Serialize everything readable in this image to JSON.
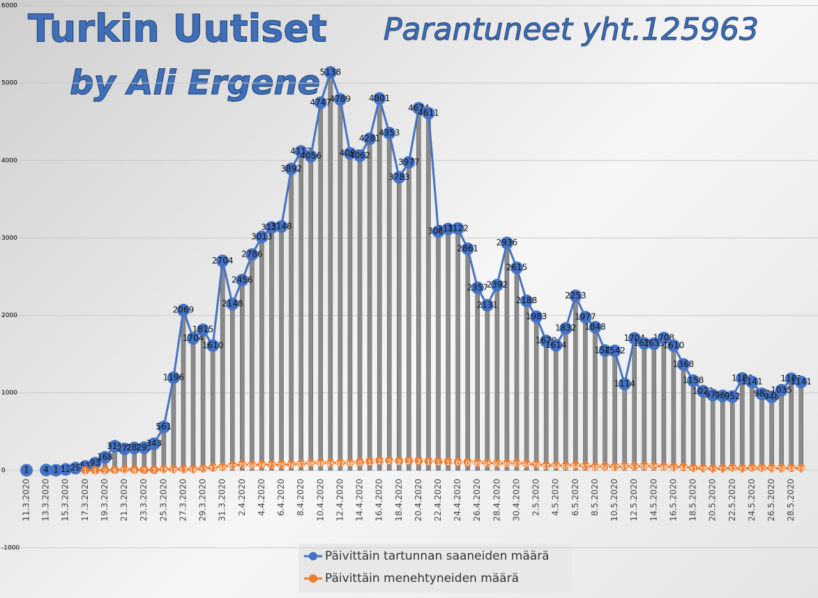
{
  "chart_data": {
    "type": "line",
    "title": "Turkin Uutiset",
    "subtitle": "by Ali Ergene",
    "annotation": "Parantuneet yht.125963",
    "categories": [
      "11.3.2020",
      null,
      "13.3.2020",
      null,
      "15.3.2020",
      null,
      "17.3.2020",
      null,
      "19.3.2020",
      null,
      "21.3.2020",
      null,
      "23.3.2020",
      null,
      "25.3.2020",
      null,
      "27.3.2020",
      null,
      "29.3.2020",
      null,
      "31.3.2020",
      null,
      "2.4.2020",
      null,
      "4.4.2020",
      null,
      "6.4.2020",
      null,
      "8.4.2020",
      null,
      "10.4.2020",
      null,
      "12.4.2020",
      null,
      "14.4.2020",
      null,
      "16.4.2020",
      null,
      "18.4.2020",
      null,
      "20.4.2020",
      null,
      "22.4.2020",
      null,
      "24.4.2020",
      null,
      "26.4.2020",
      null,
      "28.4.2020",
      null,
      "30.4.2020",
      null,
      "2.5.2020",
      null,
      "4.5.2020",
      null,
      "6.5.2020",
      null,
      "8.5.2020",
      null,
      "10.5.2020",
      null,
      "12.5.2020",
      null,
      "14.5.2020",
      null,
      "16.5.2020",
      null,
      "18.5.2020",
      null,
      "20.5.2020",
      null,
      "22.5.2020",
      null,
      "24.5.2020",
      null,
      "26.5.2020",
      null,
      "28.5.2020",
      null
    ],
    "series": [
      {
        "name": "Päivittäin tartunnan saaneiden määrä",
        "color": "#4472c4",
        "values": [
          1,
          null,
          4,
          1,
          12,
          29,
          51,
          93,
          168,
          311,
          277,
          289,
          293,
          343,
          561,
          1196,
          2069,
          1704,
          1815,
          1610,
          2704,
          2148,
          2456,
          2786,
          3013,
          3135,
          3148,
          3892,
          4117,
          4056,
          4747,
          5138,
          4789,
          4093,
          4062,
          4281,
          4801,
          4353,
          3783,
          3977,
          4674,
          4611,
          3083,
          3116,
          3122,
          2861,
          2357,
          2131,
          2392,
          2936,
          2615,
          2188,
          1983,
          1670,
          1614,
          1832,
          2253,
          1977,
          1848,
          1546,
          1542,
          1114,
          1704,
          1639,
          1635,
          1708,
          1610,
          1368,
          1158,
          1022,
          972,
          961,
          952,
          1186,
          1141,
          987,
          948,
          1035,
          1182,
          1141
        ]
      },
      {
        "name": "Päivittäin menehtyneiden määrä",
        "color": "#ed7d31",
        "values": [
          null,
          null,
          null,
          null,
          null,
          null,
          1,
          1,
          2,
          5,
          12,
          9,
          7,
          7,
          15,
          16,
          17,
          16,
          23,
          37,
          46,
          63,
          79,
          69,
          76,
          73,
          75,
          76,
          87,
          96,
          98,
          95,
          97,
          98,
          107,
          115,
          125,
          126,
          121,
          127,
          123,
          119,
          117,
          115,
          109,
          106,
          99,
          95,
          92,
          89,
          93,
          84,
          78,
          61,
          64,
          59,
          64,
          57,
          48,
          50,
          47,
          55,
          53,
          58,
          55,
          48,
          41,
          44,
          31,
          28,
          23,
          27,
          32,
          27,
          32,
          32,
          29,
          28,
          34,
          28
        ]
      }
    ],
    "ylim": [
      -1000,
      6000
    ],
    "yticks": [
      -1000,
      0,
      1000,
      2000,
      3000,
      4000,
      5000,
      6000
    ],
    "grid": true,
    "legend": "bottom"
  }
}
